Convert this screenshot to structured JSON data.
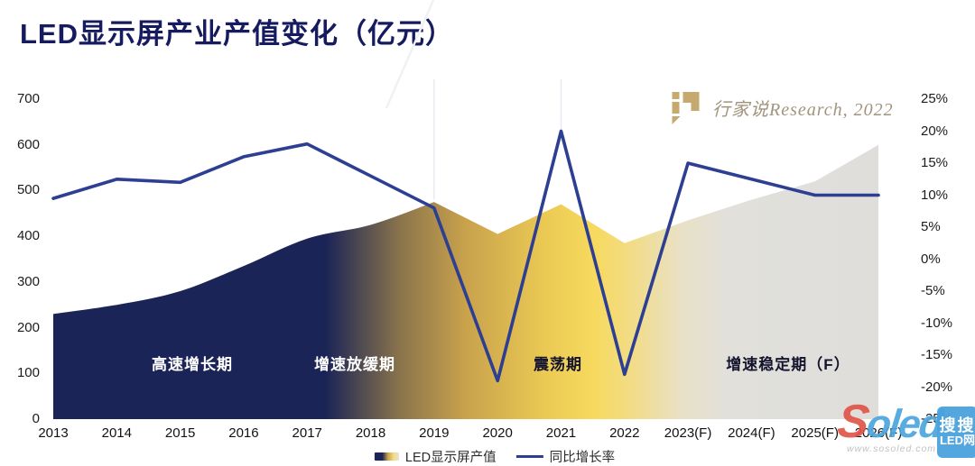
{
  "title": "LED显示屏产业产值变化（亿元）",
  "brand": {
    "text": "行家说Research, 2022"
  },
  "footer_watermark": {
    "part1": "S",
    "part2": "oled",
    "url": "www.sosoled.com",
    "box_line1": "搜搜",
    "box_line2": "LED网"
  },
  "colors": {
    "title": "#161a5e",
    "growth_line": "#2d3f92",
    "area_navy": "#1b2456",
    "area_gold": "#c9a24c",
    "area_yellow": "#f7d95e",
    "area_gray": "#e0dfdb",
    "gradient_stops": [
      [
        0,
        "#1b2456"
      ],
      [
        0.33,
        "#1b2456"
      ],
      [
        0.42,
        "#8a744c"
      ],
      [
        0.5,
        "#c9a24c"
      ],
      [
        0.6,
        "#eccb54"
      ],
      [
        0.655,
        "#f7d95e"
      ],
      [
        0.7,
        "#f2dc85"
      ],
      [
        0.76,
        "#e9e1c6"
      ],
      [
        0.82,
        "#e1e0db"
      ],
      [
        1,
        "#dfdedb"
      ]
    ]
  },
  "chart_data": {
    "type": "combo",
    "title": "LED显示屏产业产值变化（亿元）",
    "categories": [
      "2013",
      "2014",
      "2015",
      "2016",
      "2017",
      "2018",
      "2019",
      "2020",
      "2021",
      "2022",
      "2023(F)",
      "2024(F)",
      "2025(F)",
      "2026(F)"
    ],
    "series": [
      {
        "name": "LED显示屏产值",
        "type": "area",
        "axis": "left",
        "unit": "亿元",
        "values": [
          230,
          250,
          280,
          335,
          395,
          425,
          475,
          405,
          470,
          385,
          435,
          480,
          520,
          600
        ]
      },
      {
        "name": "同比增长率",
        "type": "line",
        "axis": "right",
        "unit": "%",
        "values": [
          9.5,
          12.5,
          12,
          16,
          18,
          13,
          8,
          -19,
          20,
          -18,
          15,
          12.5,
          10,
          10
        ]
      }
    ],
    "left_axis": {
      "min": 0,
      "max": 700,
      "tick_step": 100,
      "ticks": [
        "700",
        "600",
        "500",
        "400",
        "300",
        "200",
        "100",
        "0"
      ]
    },
    "right_axis": {
      "min": -25,
      "max": 25,
      "tick_step": 5,
      "ticks": [
        "25%",
        "20%",
        "15%",
        "10%",
        "5%",
        "0%",
        "-5%",
        "-10%",
        "-15%",
        "-20%",
        "-25%"
      ]
    },
    "annotations": [
      {
        "label": "高速增长期",
        "text_color": "#ffffff"
      },
      {
        "label": "增速放缓期",
        "text_color": "#ffffff"
      },
      {
        "label": "震荡期",
        "text_color": "#14142e"
      },
      {
        "label": "增速稳定期（F）",
        "text_color": "#14142e"
      }
    ],
    "legend_position": "bottom",
    "grid": false
  }
}
